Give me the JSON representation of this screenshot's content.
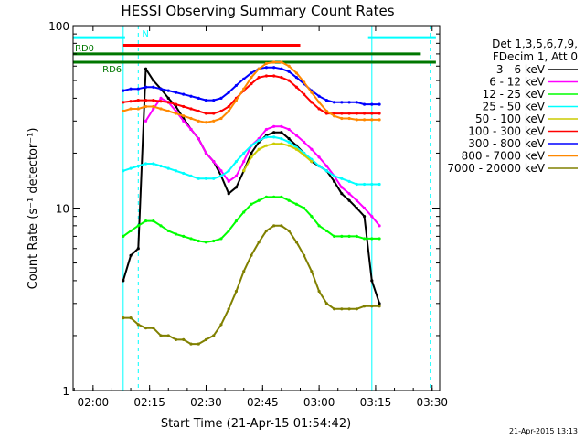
{
  "chart_data": {
    "type": "line",
    "title": "HESSI Observing Summary Count Rates",
    "xlabel": "Start Time (21-Apr-15 01:54:42)",
    "ylabel": "Count Rate (s⁻¹ detector⁻¹)",
    "x_unit": "UT time",
    "x_range": [
      "01:54:42",
      "03:32:00"
    ],
    "x_ticks": [
      "02:00",
      "02:15",
      "02:30",
      "02:45",
      "03:00",
      "03:15",
      "03:30"
    ],
    "y_scale": "log",
    "ylim": [
      1,
      100
    ],
    "y_ticks": [
      "1",
      "10",
      "100"
    ],
    "grid": false,
    "legend_position": "top-right",
    "legend_header": [
      "Det 1,3,5,6,7,9,",
      "FDecim 1, Att 0"
    ],
    "x": [
      "02:08",
      "02:10",
      "02:12",
      "02:14",
      "02:16",
      "02:18",
      "02:20",
      "02:22",
      "02:24",
      "02:26",
      "02:28",
      "02:30",
      "02:32",
      "02:34",
      "02:36",
      "02:38",
      "02:40",
      "02:42",
      "02:44",
      "02:46",
      "02:48",
      "02:50",
      "02:52",
      "02:54",
      "02:56",
      "02:58",
      "03:00",
      "03:02",
      "03:04",
      "03:06",
      "03:08",
      "03:10",
      "03:12",
      "03:14",
      "03:16"
    ],
    "series": [
      {
        "name": "3 - 6 keV",
        "color": "#000000",
        "values": [
          4,
          5.5,
          6,
          58,
          50,
          45,
          40,
          36,
          31,
          27,
          24,
          20,
          18,
          15,
          12,
          13,
          16,
          20,
          23,
          25,
          26,
          26,
          24,
          22,
          20,
          18,
          17,
          16,
          14,
          12,
          11,
          10,
          9,
          4,
          3
        ]
      },
      {
        "name": "6 - 12 keV",
        "color": "#ff00ff",
        "values": [
          null,
          null,
          null,
          30,
          35,
          40,
          38,
          34,
          30,
          27,
          24,
          20,
          18,
          16,
          14,
          15,
          18,
          22,
          24,
          27,
          28,
          28,
          27,
          25,
          23,
          21,
          19,
          17,
          15,
          13,
          12,
          11,
          10,
          9,
          8
        ]
      },
      {
        "name": "12 - 25 keV",
        "color": "#00ff00",
        "values": [
          7,
          7.5,
          8,
          8.5,
          8.5,
          8,
          7.5,
          7.2,
          7,
          6.8,
          6.6,
          6.5,
          6.6,
          6.8,
          7.5,
          8.5,
          9.5,
          10.5,
          11,
          11.5,
          11.5,
          11.5,
          11,
          10.5,
          10,
          9,
          8,
          7.5,
          7,
          7,
          7,
          7,
          6.8,
          6.8,
          6.8
        ]
      },
      {
        "name": "25 - 50 keV",
        "color": "#00ffff",
        "values": [
          16,
          16.5,
          17,
          17.5,
          17.5,
          17,
          16.5,
          16,
          15.5,
          15,
          14.5,
          14.5,
          14.5,
          15,
          16,
          18,
          20,
          22,
          23.5,
          24.5,
          24.5,
          24,
          23,
          21.5,
          20,
          18.5,
          17,
          16,
          15,
          14.5,
          14,
          13.5,
          13.5,
          13.5,
          13.5
        ]
      },
      {
        "name": "50 - 100 keV",
        "color": "#cccc00",
        "values": [
          null,
          null,
          null,
          null,
          null,
          null,
          null,
          null,
          null,
          null,
          null,
          null,
          null,
          null,
          null,
          null,
          16,
          19,
          21,
          22,
          22.5,
          22.5,
          22,
          21,
          19.5,
          18,
          null,
          null,
          null,
          null,
          null,
          null,
          null,
          null,
          null
        ]
      },
      {
        "name": "100 - 300 keV",
        "color": "#ff0000",
        "values": [
          38,
          38.5,
          39,
          39,
          39,
          38.5,
          38,
          37,
          36,
          35,
          34,
          33,
          33,
          34,
          36,
          40,
          44,
          48,
          52,
          53,
          53,
          52,
          50,
          46,
          42,
          38,
          35,
          33,
          33,
          33,
          33,
          33,
          33,
          33,
          33
        ]
      },
      {
        "name": "300 - 800 keV",
        "color": "#0000ff",
        "values": [
          44,
          45,
          45,
          46,
          46,
          45,
          44,
          43,
          42,
          41,
          40,
          39,
          39,
          40,
          43,
          47,
          51,
          55,
          58,
          59,
          59,
          58,
          56,
          52,
          48,
          44,
          41,
          39,
          38,
          38,
          38,
          38,
          37,
          37,
          37
        ]
      },
      {
        "name": "800 - 7000 keV",
        "color": "#ff8800",
        "values": [
          34,
          35,
          35,
          36,
          36,
          35,
          34,
          33,
          32,
          31,
          30,
          29.5,
          30,
          31,
          34,
          39,
          45,
          52,
          58,
          62,
          63,
          63,
          60,
          55,
          49,
          43,
          38,
          34,
          32,
          31,
          31,
          30.5,
          30.5,
          30.5,
          30.5
        ]
      },
      {
        "name": "7000 - 20000 keV",
        "color": "#808000",
        "values": [
          2.5,
          2.5,
          2.3,
          2.2,
          2.2,
          2.0,
          2.0,
          1.9,
          1.9,
          1.8,
          1.8,
          1.9,
          2.0,
          2.3,
          2.8,
          3.5,
          4.5,
          5.5,
          6.5,
          7.5,
          8,
          8,
          7.5,
          6.5,
          5.5,
          4.5,
          3.5,
          3,
          2.8,
          2.8,
          2.8,
          2.8,
          2.9,
          2.9,
          2.9
        ]
      }
    ],
    "annotations": [
      {
        "text": "RD0",
        "color": "#007700"
      },
      {
        "text": "RD6",
        "color": "#007700"
      },
      {
        "text": "N",
        "color": "#00ffff"
      }
    ],
    "timestamp": "21-Apr-2015 13:13"
  }
}
